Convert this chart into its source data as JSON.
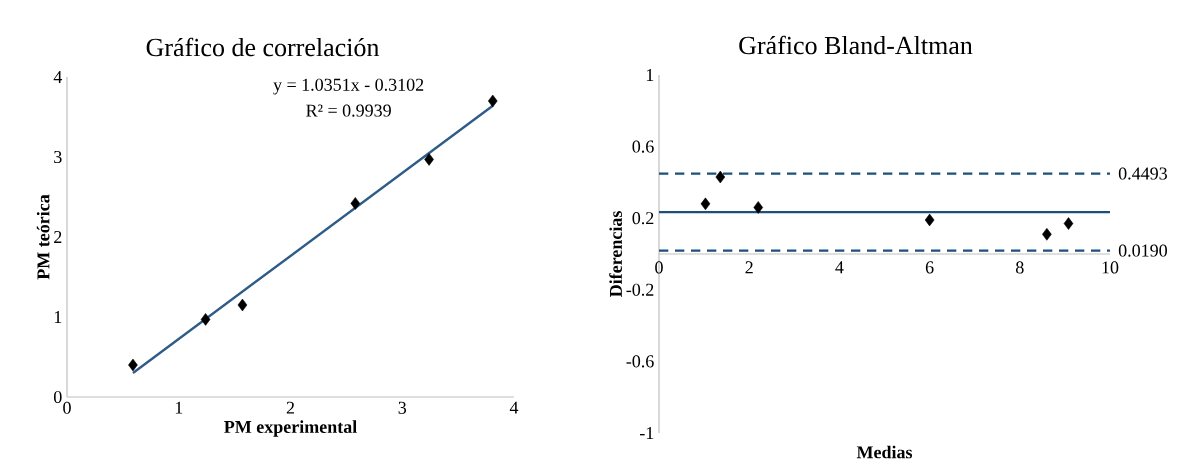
{
  "chart_data": [
    {
      "type": "scatter",
      "title": "Gráfico de correlación",
      "xlabel": "PM experimental",
      "ylabel": "PM teórica",
      "annotations": [
        "y = 1.0351x - 0.3102",
        "R² = 0.9939"
      ],
      "xlim": [
        0,
        4
      ],
      "ylim": [
        0,
        4
      ],
      "xticks": [
        0,
        1,
        2,
        3,
        4
      ],
      "yticks": [
        0,
        1,
        2,
        3,
        4
      ],
      "series": [
        {
          "color": "#000000",
          "marker": "diamond",
          "x": [
            0.59,
            1.24,
            1.57,
            2.58,
            3.24,
            3.81
          ],
          "values": [
            0.4,
            0.97,
            1.15,
            2.42,
            2.97,
            3.7
          ]
        },
        {
          "type": "line",
          "color": "#2e5b87",
          "marker": "none",
          "x": [
            0.59,
            3.81
          ],
          "values": [
            0.3,
            3.64
          ]
        }
      ]
    },
    {
      "type": "scatter",
      "title": "Gráfico Bland-Altman",
      "xlabel": "Medias",
      "ylabel": "Diferencias",
      "xlim": [
        0,
        10
      ],
      "ylim": [
        -1,
        1
      ],
      "xticks": [
        0,
        2,
        4,
        6,
        8,
        10
      ],
      "yticks": [
        -1,
        -0.6,
        -0.2,
        0.2,
        0.6,
        1
      ],
      "marker": "diamond",
      "series": [
        {
          "color": "#000000",
          "x": [
            1.03,
            1.36,
            2.2,
            6.0,
            8.6,
            9.08
          ],
          "values": [
            0.28,
            0.43,
            0.26,
            0.19,
            0.11,
            0.17
          ]
        }
      ],
      "ref_lines": [
        {
          "axis": "y",
          "value": 0.4493,
          "label": "0.4493",
          "color": "#1f4e79",
          "line_style": "dashed"
        },
        {
          "axis": "y",
          "value": 0.234,
          "color": "#1f4e79",
          "line_style": "solid"
        },
        {
          "axis": "y",
          "value": 0.019,
          "label": "0.0190",
          "color": "#1f4e79",
          "line_style": "dashed"
        }
      ]
    }
  ]
}
